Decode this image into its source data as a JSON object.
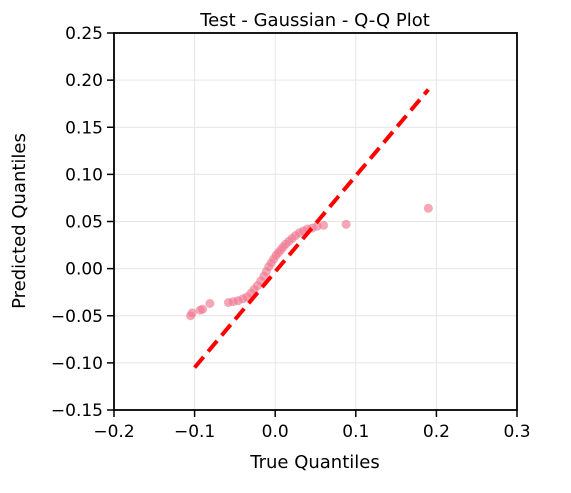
{
  "chart_data": {
    "type": "scatter",
    "title": "Test - Gaussian - Q-Q Plot",
    "xlabel": "True Quantiles",
    "ylabel": "Predicted Quantiles",
    "xlim": [
      -0.2,
      0.3
    ],
    "ylim": [
      -0.15,
      0.25
    ],
    "xticks": [
      -0.2,
      -0.1,
      0.0,
      0.1,
      0.2,
      0.3
    ],
    "xtick_labels": [
      "−0.2",
      "−0.1",
      "0.0",
      "0.1",
      "0.2",
      "0.3"
    ],
    "yticks": [
      -0.15,
      -0.1,
      -0.05,
      0.0,
      0.05,
      0.1,
      0.15,
      0.2,
      0.25
    ],
    "ytick_labels": [
      "−0.15",
      "−0.10",
      "−0.05",
      "0.00",
      "0.05",
      "0.10",
      "0.15",
      "0.20",
      "0.25"
    ],
    "grid": true,
    "point_color": "#f07890",
    "line_color": "#ff0000",
    "points": [
      [
        -0.105,
        -0.05
      ],
      [
        -0.103,
        -0.047
      ],
      [
        -0.093,
        -0.044
      ],
      [
        -0.09,
        -0.043
      ],
      [
        -0.081,
        -0.037
      ],
      [
        -0.058,
        -0.036
      ],
      [
        -0.052,
        -0.035
      ],
      [
        -0.046,
        -0.034
      ],
      [
        -0.04,
        -0.032
      ],
      [
        -0.035,
        -0.03
      ],
      [
        -0.03,
        -0.026
      ],
      [
        -0.026,
        -0.022
      ],
      [
        -0.022,
        -0.018
      ],
      [
        -0.018,
        -0.013
      ],
      [
        -0.014,
        -0.008
      ],
      [
        -0.011,
        -0.003
      ],
      [
        -0.008,
        0.002
      ],
      [
        -0.005,
        0.006
      ],
      [
        -0.002,
        0.01
      ],
      [
        0.001,
        0.014
      ],
      [
        0.004,
        0.017
      ],
      [
        0.007,
        0.02
      ],
      [
        0.01,
        0.023
      ],
      [
        0.013,
        0.026
      ],
      [
        0.017,
        0.029
      ],
      [
        0.021,
        0.032
      ],
      [
        0.025,
        0.035
      ],
      [
        0.03,
        0.038
      ],
      [
        0.035,
        0.04
      ],
      [
        0.04,
        0.042
      ],
      [
        0.046,
        0.043
      ],
      [
        0.052,
        0.045
      ],
      [
        0.06,
        0.046
      ],
      [
        0.088,
        0.047
      ],
      [
        0.19,
        0.064
      ]
    ],
    "reference_line": [
      [
        -0.1,
        -0.105
      ],
      [
        0.19,
        0.19
      ]
    ]
  }
}
